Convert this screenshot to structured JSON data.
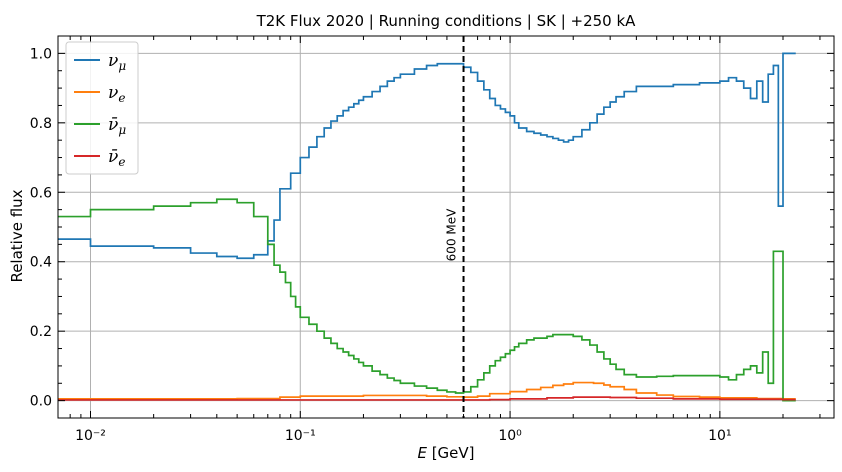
{
  "chart_data": {
    "type": "line",
    "title": "T2K Flux 2020 | Running conditions | SK | +250 kA",
    "xlabel": "E [GeV]",
    "ylabel": "Relative flux",
    "xscale": "log",
    "xlim": [
      0.007,
      35
    ],
    "ylim": [
      -0.05,
      1.05
    ],
    "grid": true,
    "legend_position": "top-left",
    "x_tick_labels": [
      "10⁻²",
      "10⁻¹",
      "10⁰",
      "10¹"
    ],
    "x_tick_values": [
      0.01,
      0.1,
      1,
      10
    ],
    "y_tick_labels": [
      "0.0",
      "0.2",
      "0.4",
      "0.6",
      "0.8",
      "1.0"
    ],
    "y_tick_values": [
      0.0,
      0.2,
      0.4,
      0.6,
      0.8,
      1.0
    ],
    "annotations": [
      {
        "text": "600 MeV",
        "x": 0.6,
        "style": "vertical dashed line"
      }
    ],
    "series": [
      {
        "name": "ν_μ",
        "color": "#1f77b4",
        "x": [
          0.007,
          0.01,
          0.02,
          0.03,
          0.04,
          0.05,
          0.06,
          0.07,
          0.075,
          0.08,
          0.09,
          0.1,
          0.11,
          0.12,
          0.13,
          0.14,
          0.15,
          0.16,
          0.17,
          0.18,
          0.19,
          0.2,
          0.22,
          0.24,
          0.26,
          0.28,
          0.3,
          0.35,
          0.4,
          0.45,
          0.5,
          0.55,
          0.6,
          0.65,
          0.7,
          0.75,
          0.8,
          0.85,
          0.9,
          0.95,
          1.0,
          1.05,
          1.1,
          1.2,
          1.3,
          1.4,
          1.5,
          1.6,
          1.7,
          1.8,
          1.9,
          2.0,
          2.2,
          2.4,
          2.6,
          2.8,
          3.0,
          3.2,
          3.5,
          4.0,
          5.0,
          6.0,
          8.0,
          10.0,
          11.0,
          12.0,
          13.0,
          14.0,
          15.0,
          16.0,
          17.0,
          18.0,
          19.0,
          20.0,
          23.0
        ],
        "y": [
          0.465,
          0.445,
          0.44,
          0.425,
          0.415,
          0.41,
          0.42,
          0.46,
          0.52,
          0.61,
          0.655,
          0.7,
          0.73,
          0.76,
          0.785,
          0.805,
          0.82,
          0.835,
          0.845,
          0.855,
          0.865,
          0.875,
          0.89,
          0.905,
          0.92,
          0.93,
          0.94,
          0.955,
          0.965,
          0.97,
          0.97,
          0.97,
          0.96,
          0.945,
          0.92,
          0.895,
          0.87,
          0.85,
          0.84,
          0.83,
          0.82,
          0.8,
          0.785,
          0.775,
          0.77,
          0.765,
          0.76,
          0.755,
          0.75,
          0.745,
          0.75,
          0.76,
          0.78,
          0.8,
          0.825,
          0.845,
          0.86,
          0.875,
          0.89,
          0.905,
          0.905,
          0.91,
          0.915,
          0.92,
          0.93,
          0.92,
          0.9,
          0.87,
          0.92,
          0.86,
          0.94,
          0.965,
          0.56,
          1.0,
          1.0
        ]
      },
      {
        "name": "ν_e",
        "color": "#ff7f0e",
        "x": [
          0.007,
          0.05,
          0.08,
          0.1,
          0.2,
          0.3,
          0.4,
          0.5,
          0.6,
          0.7,
          0.8,
          1.0,
          1.2,
          1.4,
          1.6,
          1.8,
          2.0,
          2.2,
          2.5,
          2.8,
          3.0,
          3.5,
          4.0,
          5.0,
          6.0,
          8.0,
          10.0,
          15.0,
          20.0,
          23.0
        ],
        "y": [
          0.005,
          0.006,
          0.01,
          0.013,
          0.015,
          0.015,
          0.013,
          0.011,
          0.01,
          0.013,
          0.02,
          0.026,
          0.032,
          0.038,
          0.044,
          0.048,
          0.052,
          0.052,
          0.05,
          0.045,
          0.04,
          0.032,
          0.022,
          0.016,
          0.012,
          0.01,
          0.008,
          0.006,
          0.005,
          0.005
        ]
      },
      {
        "name": "ν̄_μ",
        "color": "#2ca02c",
        "x": [
          0.007,
          0.01,
          0.02,
          0.03,
          0.04,
          0.05,
          0.06,
          0.07,
          0.075,
          0.08,
          0.085,
          0.09,
          0.095,
          0.1,
          0.11,
          0.12,
          0.13,
          0.14,
          0.15,
          0.16,
          0.17,
          0.18,
          0.19,
          0.2,
          0.22,
          0.24,
          0.26,
          0.28,
          0.3,
          0.35,
          0.4,
          0.45,
          0.5,
          0.55,
          0.6,
          0.65,
          0.7,
          0.75,
          0.8,
          0.85,
          0.9,
          0.95,
          1.0,
          1.05,
          1.1,
          1.2,
          1.3,
          1.4,
          1.5,
          1.6,
          1.7,
          1.8,
          1.9,
          2.0,
          2.2,
          2.4,
          2.6,
          2.8,
          3.0,
          3.2,
          3.5,
          4.0,
          5.0,
          6.0,
          8.0,
          10.0,
          11.0,
          12.0,
          13.0,
          14.0,
          15.0,
          16.0,
          17.0,
          18.0,
          19.0,
          20.0,
          23.0
        ],
        "y": [
          0.53,
          0.55,
          0.56,
          0.57,
          0.58,
          0.57,
          0.53,
          0.45,
          0.39,
          0.37,
          0.34,
          0.3,
          0.27,
          0.24,
          0.22,
          0.2,
          0.18,
          0.165,
          0.15,
          0.14,
          0.13,
          0.12,
          0.11,
          0.1,
          0.085,
          0.075,
          0.065,
          0.058,
          0.05,
          0.042,
          0.036,
          0.03,
          0.025,
          0.022,
          0.025,
          0.04,
          0.06,
          0.08,
          0.1,
          0.115,
          0.125,
          0.135,
          0.145,
          0.155,
          0.165,
          0.175,
          0.18,
          0.18,
          0.185,
          0.19,
          0.19,
          0.19,
          0.19,
          0.185,
          0.175,
          0.16,
          0.14,
          0.12,
          0.105,
          0.09,
          0.075,
          0.068,
          0.07,
          0.072,
          0.072,
          0.068,
          0.06,
          0.075,
          0.09,
          0.1,
          0.08,
          0.14,
          0.05,
          0.43,
          0.43,
          0.0,
          0.0
        ]
      },
      {
        "name": "ν̄_e",
        "color": "#d62728",
        "x": [
          0.007,
          0.1,
          0.3,
          0.6,
          0.8,
          1.0,
          1.5,
          2.0,
          2.5,
          3.0,
          4.0,
          6.0,
          10.0,
          20.0,
          23.0
        ],
        "y": [
          0.002,
          0.002,
          0.002,
          0.002,
          0.003,
          0.005,
          0.008,
          0.01,
          0.01,
          0.009,
          0.007,
          0.005,
          0.004,
          0.003,
          0.003
        ]
      }
    ]
  }
}
